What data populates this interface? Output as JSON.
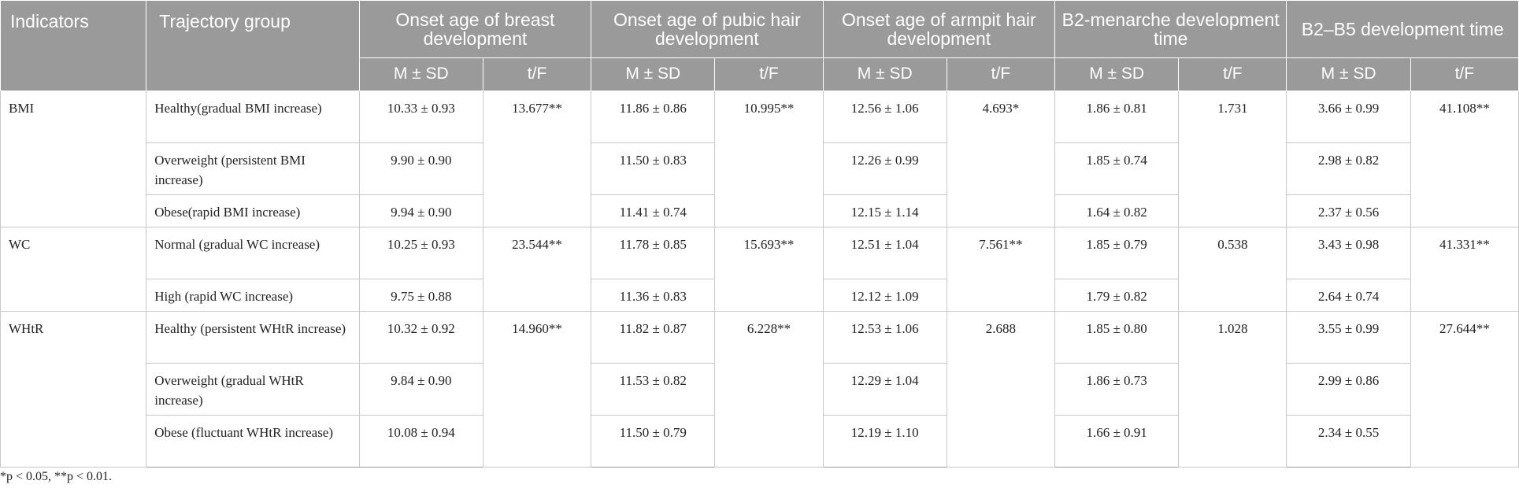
{
  "table": {
    "headers": {
      "indicators": "Indicators",
      "trajectory_group": "Trajectory group",
      "groups": [
        "Onset age of breast development",
        "Onset age of pubic hair development",
        "Onset age of armpit hair development",
        "B2-menarche development time",
        "B2–B5 development time"
      ],
      "msd": "M ± SD",
      "tf": "t/F"
    },
    "sections": [
      {
        "indicator": "BMI",
        "rows": [
          {
            "group": "Healthy(gradual BMI increase)",
            "breast": "10.33 ± 0.93",
            "pubic": "11.86 ± 0.86",
            "armpit": "12.56 ± 1.06",
            "menarche": "1.86 ± 0.81",
            "b2b5": "3.66 ± 0.99"
          },
          {
            "group": "Overweight (persistent BMI increase)",
            "breast": "9.90 ± 0.90",
            "pubic": "11.50 ± 0.83",
            "armpit": "12.26 ± 0.99",
            "menarche": "1.85 ± 0.74",
            "b2b5": "2.98 ± 0.82"
          },
          {
            "group": "Obese(rapid BMI increase)",
            "breast": "9.94 ± 0.90",
            "pubic": "11.41 ± 0.74",
            "armpit": "12.15 ± 1.14",
            "menarche": "1.64 ± 0.82",
            "b2b5": "2.37 ± 0.56"
          }
        ],
        "tf": {
          "breast": "13.677**",
          "pubic": "10.995**",
          "armpit": "4.693*",
          "menarche": "1.731",
          "b2b5": "41.108**"
        }
      },
      {
        "indicator": "WC",
        "rows": [
          {
            "group": "Normal (gradual WC increase)",
            "breast": "10.25 ± 0.93",
            "pubic": "11.78 ± 0.85",
            "armpit": "12.51 ± 1.04",
            "menarche": "1.85 ± 0.79",
            "b2b5": "3.43 ± 0.98"
          },
          {
            "group": "High (rapid WC increase)",
            "breast": "9.75 ± 0.88",
            "pubic": "11.36 ± 0.83",
            "armpit": "12.12 ± 1.09",
            "menarche": "1.79 ± 0.82",
            "b2b5": "2.64 ± 0.74"
          }
        ],
        "tf": {
          "breast": "23.544**",
          "pubic": "15.693**",
          "armpit": "7.561**",
          "menarche": "0.538",
          "b2b5": "41.331**"
        }
      },
      {
        "indicator": "WHtR",
        "rows": [
          {
            "group": "Healthy (persistent WHtR increase)",
            "breast": "10.32 ± 0.92",
            "pubic": "11.82 ± 0.87",
            "armpit": "12.53 ± 1.06",
            "menarche": "1.85 ± 0.80",
            "b2b5": "3.55 ± 0.99"
          },
          {
            "group": "Overweight (gradual WHtR increase)",
            "breast": "9.84 ± 0.90",
            "pubic": "11.53 ± 0.82",
            "armpit": "12.29 ± 1.04",
            "menarche": "1.86 ± 0.73",
            "b2b5": "2.99 ± 0.86"
          },
          {
            "group": "Obese (fluctuant WHtR increase)",
            "breast": "10.08 ± 0.94",
            "pubic": "11.50 ± 0.79",
            "armpit": "12.19 ± 1.10",
            "menarche": "1.66 ± 0.91",
            "b2b5": "2.34 ± 0.55"
          }
        ],
        "tf": {
          "breast": "14.960**",
          "pubic": "6.228**",
          "armpit": "2.688",
          "menarche": "1.028",
          "b2b5": "27.644**"
        }
      }
    ]
  },
  "footnote": "*p < 0.05, **p < 0.01."
}
